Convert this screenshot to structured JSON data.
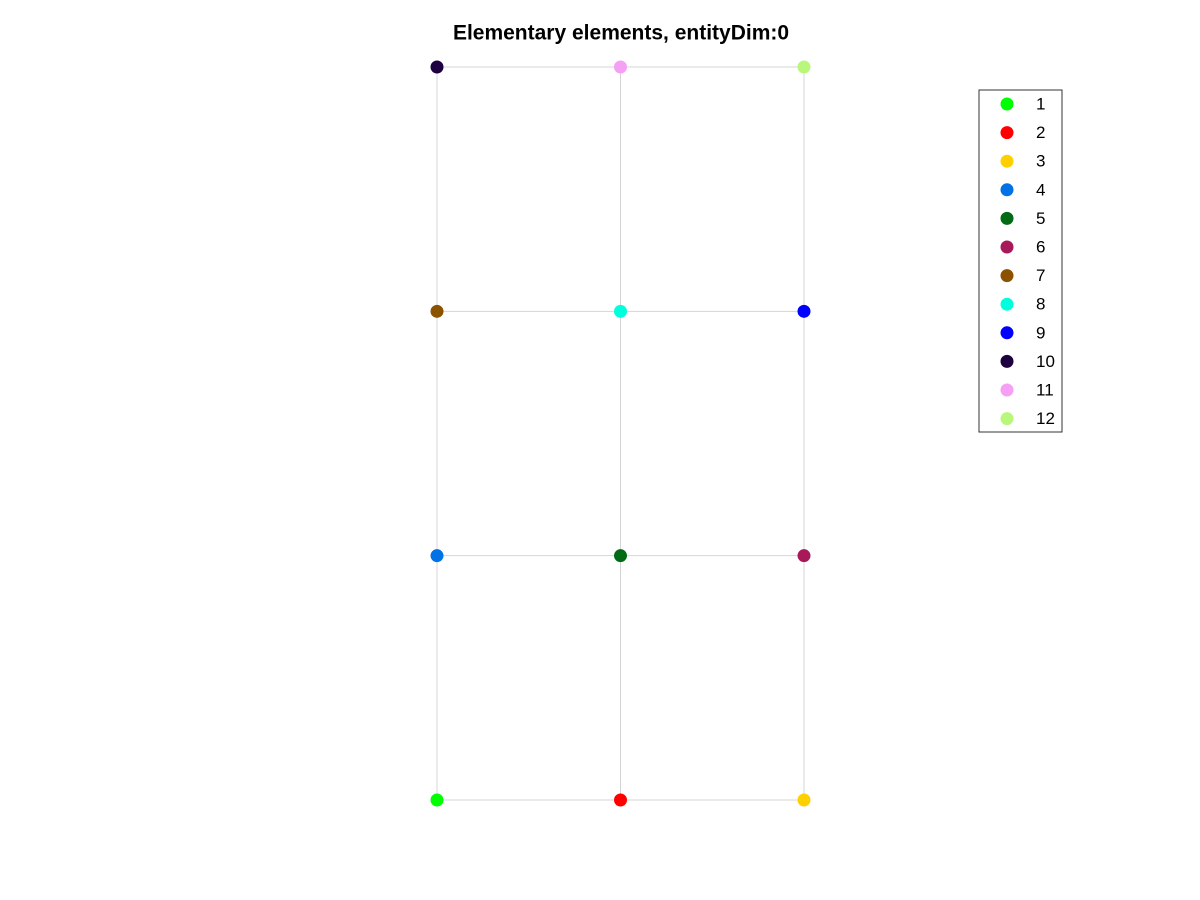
{
  "chart_data": {
    "type": "scatter",
    "title": "Elementary elements, entityDim:0",
    "xlim": [
      0,
      2
    ],
    "ylim": [
      0,
      3
    ],
    "legend": "top-right",
    "series": [
      {
        "name": "1",
        "color": "#00ff00",
        "x": [
          0
        ],
        "y": [
          0
        ]
      },
      {
        "name": "2",
        "color": "#ff0000",
        "x": [
          1
        ],
        "y": [
          0
        ]
      },
      {
        "name": "3",
        "color": "#ffd000",
        "x": [
          2
        ],
        "y": [
          0
        ]
      },
      {
        "name": "4",
        "color": "#0072e6",
        "x": [
          0
        ],
        "y": [
          1
        ]
      },
      {
        "name": "5",
        "color": "#006b14",
        "x": [
          1
        ],
        "y": [
          1
        ]
      },
      {
        "name": "6",
        "color": "#a8195a",
        "x": [
          2
        ],
        "y": [
          1
        ]
      },
      {
        "name": "7",
        "color": "#8b5200",
        "x": [
          0
        ],
        "y": [
          2
        ]
      },
      {
        "name": "8",
        "color": "#00ffdd",
        "x": [
          1
        ],
        "y": [
          2
        ]
      },
      {
        "name": "9",
        "color": "#0000ff",
        "x": [
          2
        ],
        "y": [
          2
        ]
      },
      {
        "name": "10",
        "color": "#1e0040",
        "x": [
          0
        ],
        "y": [
          3
        ]
      },
      {
        "name": "11",
        "color": "#f5a0f5",
        "x": [
          1
        ],
        "y": [
          3
        ]
      },
      {
        "name": "12",
        "color": "#b8f77a",
        "x": [
          2
        ],
        "y": [
          3
        ]
      }
    ]
  }
}
